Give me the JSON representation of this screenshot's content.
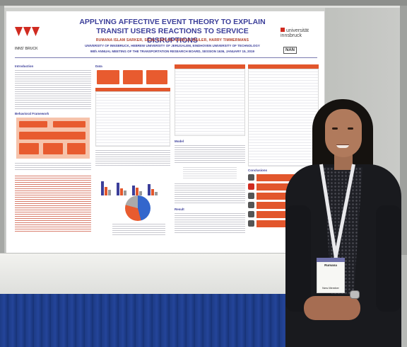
{
  "poster": {
    "title_line1": "APPLYING AFFECTIVE EVENT THEORY TO EXPLAIN",
    "title_line2": "TRANSIT USERS REACTIONS TO SERVICE DISRUPTIONS",
    "authors": "RUMANA ISLAM SARKER, SIGAL KAPLAN, MARKUS MAILER, HARRY TIMMERMANS",
    "affiliations": "UNIVERSITY OF INNSBRUCK, HEBREW UNIVERSITY OF JERUSALEM, EINDHOVEN UNIVERSITY OF TECHNOLOGY",
    "meeting": "98th ANNUAL MEETING OF THE TRANSPORTATION RESEARCH BOARD, SESSION 1636, JANUARY 15, 2019",
    "logo_left_text": "INNS' BRUCK",
    "logo_right_text": "universität innsbruck",
    "logo_nan_text": "NAN",
    "section_intro": "Introduction",
    "section_framework": "Behavioral Framework",
    "section_data": "Data",
    "section_model": "Model",
    "section_result": "Result",
    "section_conclusion": "Conclusions"
  },
  "badge": {
    "name": "Rumana",
    "type": "New Member"
  },
  "colors": {
    "poster_title": "#3c3f9a",
    "poster_accent": "#e2562c",
    "table_cloth": "#1d3b86",
    "jacket": "#191a1e"
  }
}
